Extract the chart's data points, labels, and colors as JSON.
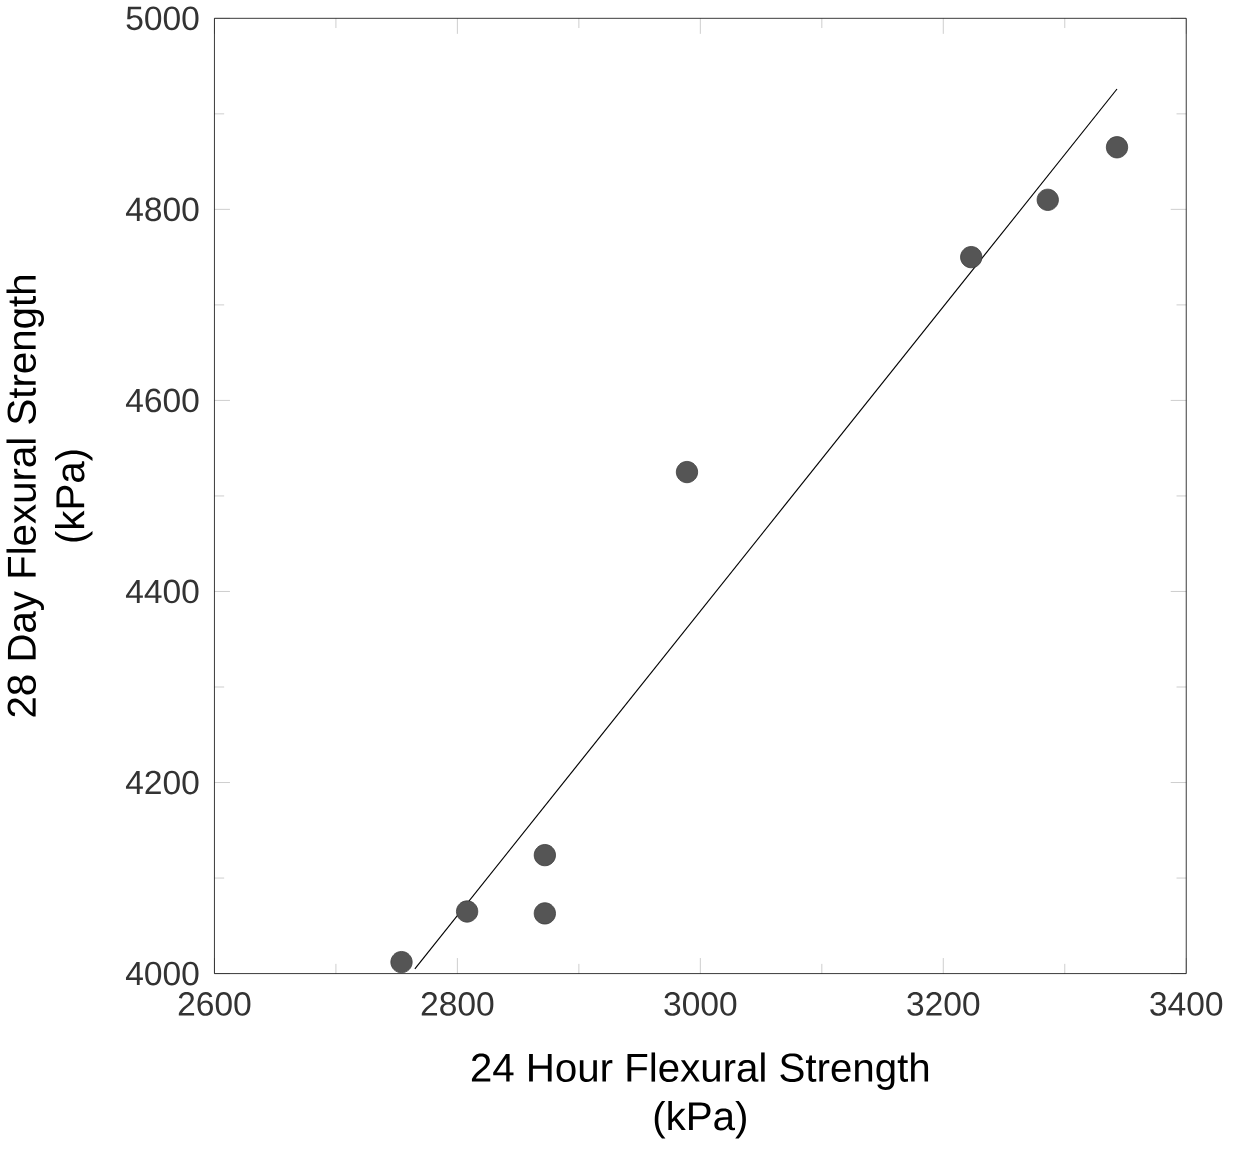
{
  "chart_data": {
    "type": "scatter",
    "xlabel": "24 Hour Flexural Strength\n(kPa)",
    "ylabel": "28 Day Flexural Strength\n(kPa)",
    "xlim": [
      2600,
      3400
    ],
    "ylim": [
      4000,
      5000
    ],
    "xticks": [
      2600,
      2800,
      3000,
      3200,
      3400
    ],
    "yticks": [
      4000,
      4200,
      4400,
      4600,
      4800,
      5000
    ],
    "grid": false,
    "series": [
      {
        "color": "#555555",
        "marker": "circle",
        "x": [
          2754,
          2808,
          2872,
          2872,
          2989,
          3223,
          3286,
          3343
        ],
        "values": [
          4012,
          4065,
          4124,
          4063,
          4525,
          4750,
          4810,
          4865
        ]
      },
      {
        "type": "line",
        "color": "#000000",
        "x": [
          2765,
          3343
        ],
        "values": [
          4005,
          4926
        ]
      }
    ]
  }
}
